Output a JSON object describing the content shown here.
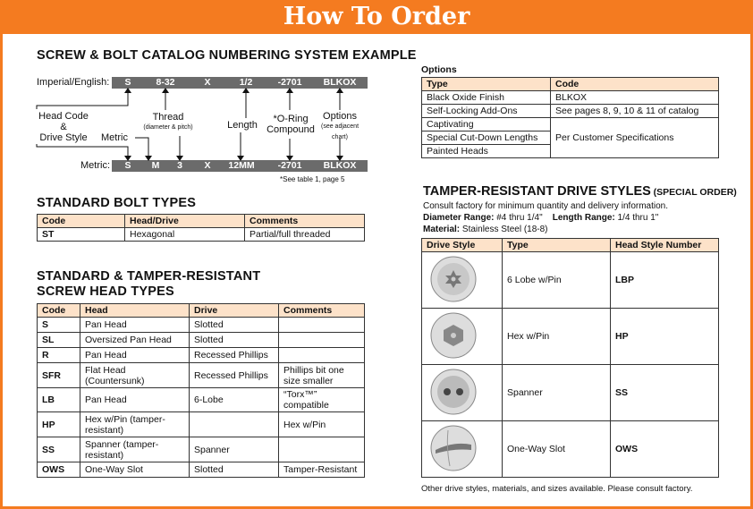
{
  "header": {
    "title": "How To Order"
  },
  "catalog": {
    "title": "SCREW & BOLT CATALOG NUMBERING SYSTEM EXAMPLE",
    "imperial_label": "Imperial/English:",
    "imperial": [
      "S",
      "8-32",
      "X",
      "1/2",
      "-2701",
      "BLKOX"
    ],
    "metric_label": "Metric:",
    "metric": [
      "S",
      "M",
      "3",
      "X",
      "12MM",
      "-2701",
      "BLKOX"
    ],
    "labels": {
      "head_code": "Head Code",
      "amp": "&",
      "drive_style": "Drive Style",
      "metric": "Metric",
      "thread": "Thread",
      "thread_sub": "(diameter & pitch)",
      "length": "Length",
      "oring1": "*O-Ring",
      "oring2": "Compound",
      "options": "Options",
      "options_sub1": "(see adjacent",
      "options_sub2": "chart)"
    },
    "footnote": "*See table 1, page 5"
  },
  "bolt_types": {
    "title": "STANDARD BOLT TYPES",
    "headers": [
      "Code",
      "Head/Drive",
      "Comments"
    ],
    "rows": [
      [
        "ST",
        "Hexagonal",
        "Partial/full threaded"
      ]
    ]
  },
  "screw_types": {
    "title1": "STANDARD & TAMPER-RESISTANT",
    "title2": "SCREW HEAD TYPES",
    "headers": [
      "Code",
      "Head",
      "Drive",
      "Comments"
    ],
    "rows": [
      [
        "S",
        "Pan Head",
        "Slotted",
        ""
      ],
      [
        "SL",
        "Oversized Pan Head",
        "Slotted",
        ""
      ],
      [
        "R",
        "Pan Head",
        "Recessed Phillips",
        ""
      ],
      [
        "SFR",
        "Flat Head (Countersunk)",
        "Recessed Phillips",
        "Phillips bit one size smaller"
      ],
      [
        "LB",
        "Pan Head",
        "6-Lobe",
        "“Torx™” compatible"
      ],
      [
        "HP",
        "Hex w/Pin (tamper-resistant)",
        "",
        "Hex w/Pin"
      ],
      [
        "SS",
        "Spanner (tamper-resistant)",
        "Spanner",
        ""
      ],
      [
        "OWS",
        "One-Way Slot",
        "Slotted",
        "Tamper-Resistant"
      ]
    ]
  },
  "options": {
    "title": "Options",
    "headers": [
      "Type",
      "Code"
    ],
    "rows": [
      [
        "Black Oxide Finish",
        "BLKOX"
      ],
      [
        "Self-Locking Add-Ons",
        "See pages 8, 9, 10 & 11 of catalog"
      ],
      [
        "Captivating",
        "Per Customer Specifications"
      ],
      [
        "Special Cut-Down Lengths",
        ""
      ],
      [
        "Painted Heads",
        ""
      ]
    ]
  },
  "tamper": {
    "title": "TAMPER-RESISTANT DRIVE STYLES",
    "special": "(SPECIAL ORDER)",
    "note": "Consult factory for minimum quantity and delivery information.",
    "diameter_label": "Diameter Range:",
    "diameter": "#4 thru 1/4\"",
    "length_label": "Length Range:",
    "length": "1/4 thru 1\"",
    "material_label": "Material:",
    "material": "Stainless Steel (18-8)",
    "headers": [
      "Drive Style",
      "Type",
      "Head Style Number"
    ],
    "rows": [
      {
        "icon": "six-lobe-pin",
        "type": "6 Lobe w/Pin",
        "code": "LBP"
      },
      {
        "icon": "hex-pin",
        "type": "Hex w/Pin",
        "code": "HP"
      },
      {
        "icon": "spanner",
        "type": "Spanner",
        "code": "SS"
      },
      {
        "icon": "one-way-slot",
        "type": "One-Way Slot",
        "code": "OWS"
      }
    ],
    "footer": "Other drive styles, materials, and sizes available. Please consult factory."
  },
  "colors": {
    "orange": "#f47b20",
    "table_header": "#fde2c9",
    "bar": "#6b6b6b"
  }
}
